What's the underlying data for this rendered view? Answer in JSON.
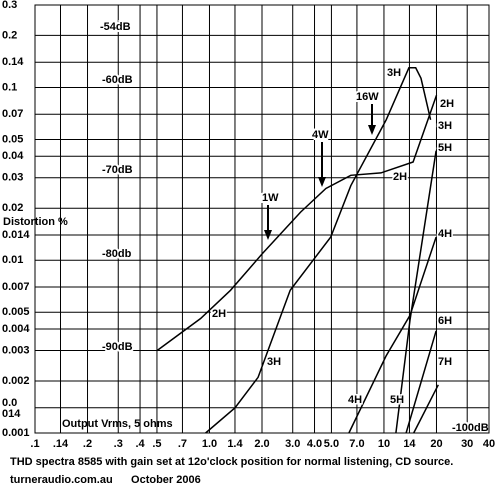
{
  "chart_data": {
    "type": "line",
    "y_label": "Distortion %",
    "x_label": "Output Vrms, 5 ohms",
    "caption": "THD spectra 8585 with gain set at 12o'clock position for normal listening, CD source.",
    "footer": "turneraudio.com.au      October 2006",
    "log_x": true,
    "log_y": true,
    "grid": true,
    "xlim": [
      0.1,
      40
    ],
    "ylim": [
      0.001,
      0.3
    ],
    "xticks": [
      {
        "value": 0.1,
        "label": ".1"
      },
      {
        "value": 0.14,
        "label": ".14"
      },
      {
        "value": 0.2,
        "label": ".2"
      },
      {
        "value": 0.3,
        "label": ".3"
      },
      {
        "value": 0.4,
        "label": ".4"
      },
      {
        "value": 0.5,
        "label": ".5"
      },
      {
        "value": 0.7,
        "label": ".7"
      },
      {
        "value": 1,
        "label": "1.0"
      },
      {
        "value": 1.4,
        "label": "1.4"
      },
      {
        "value": 2,
        "label": "2.0"
      },
      {
        "value": 3,
        "label": "3.0"
      },
      {
        "value": 4,
        "label": "4.0"
      },
      {
        "value": 5,
        "label": "5.0"
      },
      {
        "value": 7,
        "label": "7.0"
      },
      10,
      14,
      20,
      30,
      40
    ],
    "yticks": [
      0.3,
      0.2,
      0.14,
      0.1,
      0.07,
      0.05,
      0.04,
      0.03,
      0.02,
      0.014,
      0.01,
      0.007,
      0.005,
      0.004,
      0.003,
      0.002,
      {
        "value": 0.0014,
        "label": "0.0\n014"
      },
      0.001
    ],
    "annotations": [
      "-54dB",
      "-60dB",
      "-70dB",
      "-80db",
      "-90dB",
      "-100dB",
      "1W",
      "4W",
      "16W"
    ],
    "series": [
      {
        "name": "2H",
        "color": "#000000",
        "x": [
          0.5,
          0.89,
          1.32,
          2.02,
          3.33,
          4.65,
          6.46,
          9.6,
          14.7,
          20
        ],
        "values": [
          0.003,
          0.0046,
          0.0067,
          0.011,
          0.019,
          0.026,
          0.031,
          0.032,
          0.037,
          0.09
        ]
      },
      {
        "name": "3H",
        "color": "#000000",
        "x": [
          0.95,
          1.4,
          1.9,
          2.9,
          4.95,
          6.46,
          10.3,
          13.9,
          15.2,
          16.3,
          18.5
        ],
        "values": [
          0.001,
          0.0014,
          0.0021,
          0.0067,
          0.0136,
          0.027,
          0.065,
          0.13,
          0.13,
          0.113,
          0.065
        ]
      },
      {
        "name": "4H",
        "color": "#000000",
        "x": [
          6.3,
          10.3,
          14.1,
          19.9
        ],
        "values": [
          0.001,
          0.0028,
          0.0048,
          0.0136
        ]
      },
      {
        "name": "5H",
        "color": "#000000",
        "x": [
          11.7,
          14.1,
          19.9
        ],
        "values": [
          0.001,
          0.0045,
          0.043
        ]
      },
      {
        "name": "6H",
        "color": "#000000",
        "x": [
          13.4,
          19.9
        ],
        "values": [
          0.001,
          0.0039
        ]
      },
      {
        "name": "7H",
        "color": "#000000",
        "x": [
          14.8,
          20.5
        ],
        "values": [
          0.001,
          0.0019
        ]
      }
    ]
  }
}
